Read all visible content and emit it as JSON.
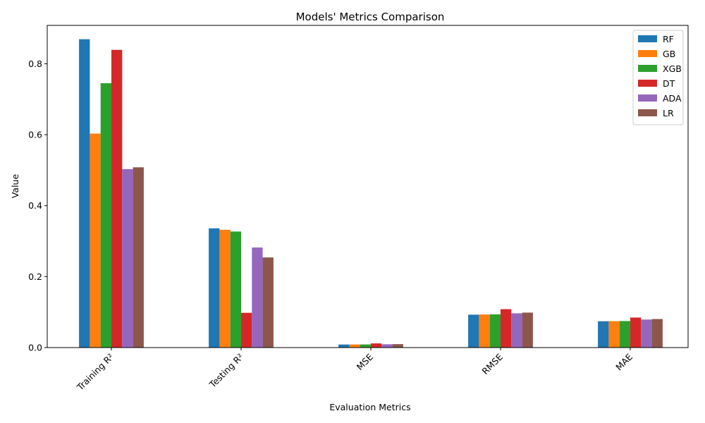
{
  "chart_data": {
    "type": "bar",
    "title": "Models' Metrics Comparison",
    "xlabel": "Evaluation Metrics",
    "ylabel": "Value",
    "categories": [
      "Training R²",
      "Testing R²",
      "MSE",
      "RMSE",
      "MAE"
    ],
    "ylim": [
      0,
      0.908
    ],
    "yticks": [
      "0.0",
      "0.2",
      "0.4",
      "0.6",
      "0.8"
    ],
    "grid": false,
    "legend_position": "top-right",
    "xtick_rotation_deg": 45,
    "series": [
      {
        "name": "RF",
        "color": "#1f77b4",
        "values": [
          0.869,
          0.336,
          0.0086,
          0.0927,
          0.0742
        ]
      },
      {
        "name": "GB",
        "color": "#ff7f0e",
        "values": [
          0.603,
          0.332,
          0.0087,
          0.0932,
          0.0744
        ]
      },
      {
        "name": "XGB",
        "color": "#2ca02c",
        "values": [
          0.745,
          0.327,
          0.0088,
          0.0936,
          0.0748
        ]
      },
      {
        "name": "DT",
        "color": "#d62728",
        "values": [
          0.839,
          0.098,
          0.0117,
          0.1082,
          0.0846
        ]
      },
      {
        "name": "ADA",
        "color": "#9467bd",
        "values": [
          0.503,
          0.282,
          0.0093,
          0.0965,
          0.0789
        ]
      },
      {
        "name": "LR",
        "color": "#8c564b",
        "values": [
          0.508,
          0.254,
          0.0097,
          0.0985,
          0.0804
        ]
      }
    ]
  }
}
